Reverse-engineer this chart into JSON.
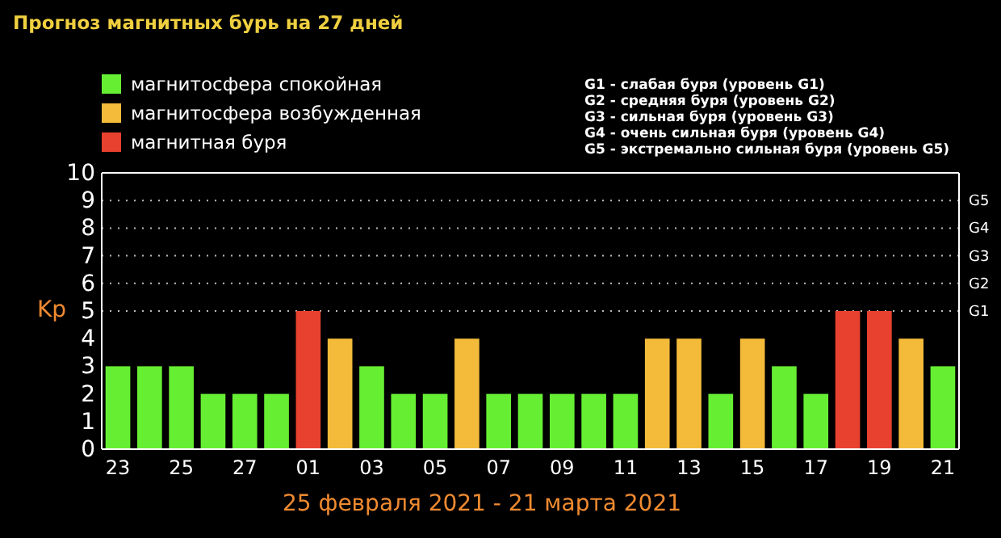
{
  "chart_data": {
    "type": "bar",
    "title": "Прогноз магнитных бурь на 27 дней",
    "xlabel": "25 февраля 2021 - 21 марта 2021",
    "ylabel": "Kp",
    "categories": [
      "23",
      null,
      "25",
      null,
      "27",
      null,
      "01",
      null,
      "03",
      null,
      "05",
      null,
      "07",
      null,
      "09",
      null,
      "11",
      null,
      "13",
      null,
      "15",
      null,
      "17",
      null,
      "19",
      null,
      "21"
    ],
    "series": [
      {
        "name": "магнитосфера спокойная",
        "color": "#66ee33",
        "values": [
          3,
          3,
          3,
          2,
          2,
          2,
          null,
          null,
          3,
          2,
          2,
          null,
          2,
          2,
          2,
          2,
          2,
          null,
          null,
          2,
          null,
          3,
          2,
          null,
          null,
          null,
          3
        ]
      },
      {
        "name": "магнитосфера возбужденная",
        "color": "#f4bb3a",
        "values": [
          null,
          null,
          null,
          null,
          null,
          null,
          null,
          4,
          null,
          null,
          null,
          4,
          null,
          null,
          null,
          null,
          null,
          4,
          4,
          null,
          4,
          null,
          null,
          null,
          null,
          4,
          null
        ]
      },
      {
        "name": "магнитная буря",
        "color": "#e8412f",
        "values": [
          null,
          null,
          null,
          null,
          null,
          null,
          5,
          null,
          null,
          null,
          null,
          null,
          null,
          null,
          null,
          null,
          null,
          null,
          null,
          null,
          null,
          null,
          null,
          5,
          5,
          null,
          null
        ]
      }
    ],
    "ylim": [
      0,
      10
    ],
    "yticks": [
      0,
      1,
      2,
      3,
      4,
      5,
      6,
      7,
      8,
      9,
      10
    ],
    "ref_lines": [
      {
        "axis": "y",
        "value": 5,
        "label": "G1",
        "line_style": "dotted"
      },
      {
        "axis": "y",
        "value": 6,
        "label": "G2",
        "line_style": "dotted"
      },
      {
        "axis": "y",
        "value": 7,
        "label": "G3",
        "line_style": "dotted"
      },
      {
        "axis": "y",
        "value": 8,
        "label": "G4",
        "line_style": "dotted"
      },
      {
        "axis": "y",
        "value": 9,
        "label": "G5",
        "line_style": "dotted"
      }
    ],
    "legend": "top left",
    "annotations": [
      "G1 - слабая буря (уровень G1)",
      "G2 - средняя буря (уровень G2)",
      "G3 - сильная буря (уровень G3)",
      "G4 - очень сильная буря (уровень G4)",
      "G5 - экстремально сильная буря (уровень G5)"
    ]
  }
}
